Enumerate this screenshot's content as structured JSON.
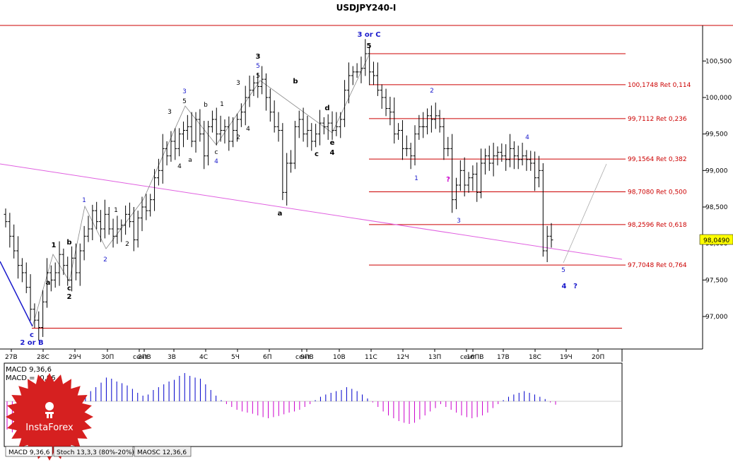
{
  "chart_data": {
    "type": "candlestick",
    "title": "USDJPY240-I",
    "symbol": "USDJPY",
    "timeframe": "H4",
    "y_ticks": [
      "100,500",
      "100,000",
      "99,500",
      "99,000",
      "98,500",
      "98,000",
      "97,500",
      "97,000"
    ],
    "y_tick_values": [
      100.5,
      100.0,
      99.5,
      99.0,
      98.5,
      98.0,
      97.5,
      97.0
    ],
    "ylim": [
      96.6,
      101.0
    ],
    "current_price": "98,0490",
    "current_price_value": 98.049,
    "x_ticks": [
      "27B",
      "28C",
      "29Ч",
      "30П",
      "сент",
      "2ПВ",
      "3B",
      "4C",
      "5Ч",
      "6П",
      "сент",
      "9ПВ",
      "10B",
      "11C",
      "12Ч",
      "13П",
      "сент",
      "16ПВ",
      "17B",
      "18C",
      "19Ч",
      "20П"
    ],
    "fib_levels": [
      {
        "price": 100.6,
        "label": ""
      },
      {
        "price": 100.1748,
        "label": "100,1748 Ret 0,114"
      },
      {
        "price": 99.7112,
        "label": "99,7112 Ret 0,236"
      },
      {
        "price": 99.1564,
        "label": "99,1564 Ret 0,382"
      },
      {
        "price": 98.708,
        "label": "98,7080 Ret 0,500"
      },
      {
        "price": 98.2596,
        "label": "98,2596 Ret 0,618"
      },
      {
        "price": 97.7048,
        "label": "97,7048 Ret 0,764"
      },
      {
        "price": 96.84,
        "label": ""
      }
    ],
    "closes": [
      98.3,
      98.1,
      97.9,
      97.7,
      97.6,
      97.4,
      97.1,
      96.95,
      96.85,
      97.2,
      97.6,
      97.5,
      97.6,
      97.85,
      97.7,
      97.5,
      97.8,
      97.6,
      97.9,
      98.1,
      98.2,
      98.45,
      98.3,
      98.2,
      98.4,
      98.2,
      98.1,
      98.2,
      98.25,
      98.4,
      98.3,
      98.05,
      98.35,
      98.5,
      98.45,
      98.6,
      98.9,
      99.0,
      99.3,
      99.2,
      99.4,
      99.3,
      99.5,
      99.55,
      99.6,
      99.4,
      99.7,
      99.5,
      99.2,
      99.6,
      99.7,
      99.5,
      99.55,
      99.6,
      99.4,
      99.55,
      99.7,
      99.8,
      100.0,
      100.1,
      100.2,
      100.15,
      100.25,
      100.0,
      99.8,
      99.6,
      99.55,
      98.7,
      99.1,
      99.1,
      99.6,
      99.7,
      99.5,
      99.55,
      99.4,
      99.5,
      99.65,
      99.6,
      99.65,
      99.55,
      99.6,
      99.7,
      100.1,
      100.3,
      100.35,
      100.35,
      100.4,
      100.6,
      100.35,
      100.3,
      100.1,
      100.0,
      99.85,
      99.8,
      99.5,
      99.55,
      99.3,
      99.3,
      99.2,
      99.5,
      99.6,
      99.6,
      99.75,
      99.7,
      99.75,
      99.6,
      99.3,
      99.3,
      98.6,
      98.8,
      99.0,
      98.8,
      98.9,
      98.95,
      98.7,
      99.1,
      99.2,
      99.1,
      99.2,
      99.25,
      99.2,
      99.15,
      99.3,
      99.2,
      99.15,
      99.2,
      99.15,
      99.1,
      98.9,
      99.0,
      97.9,
      98.1,
      98.049
    ],
    "macd": {
      "label": "MACD 9,36,6",
      "value_label": "MACD = -0,06",
      "values": [
        -0.5,
        -0.55,
        -0.6,
        -0.62,
        -0.6,
        -0.55,
        -0.5,
        -0.45,
        -0.4,
        -0.33,
        -0.25,
        -0.18,
        -0.1,
        -0.03,
        0.03,
        0.1,
        0.18,
        0.25,
        0.33,
        0.42,
        0.4,
        0.35,
        0.32,
        0.28,
        0.22,
        0.15,
        0.1,
        0.12,
        0.2,
        0.25,
        0.3,
        0.35,
        0.38,
        0.45,
        0.5,
        0.45,
        0.42,
        0.4,
        0.3,
        0.2,
        0.1,
        0.02,
        -0.05,
        -0.1,
        -0.15,
        -0.18,
        -0.2,
        -0.22,
        -0.25,
        -0.28,
        -0.3,
        -0.28,
        -0.26,
        -0.23,
        -0.2,
        -0.18,
        -0.15,
        -0.1,
        -0.05,
        0.02,
        0.08,
        0.12,
        0.15,
        0.18,
        0.2,
        0.25,
        0.22,
        0.18,
        0.12,
        0.05,
        -0.02,
        -0.1,
        -0.18,
        -0.25,
        -0.3,
        -0.35,
        -0.38,
        -0.4,
        -0.38,
        -0.32,
        -0.25,
        -0.18,
        -0.12,
        -0.05,
        -0.1,
        -0.15,
        -0.2,
        -0.25,
        -0.28,
        -0.3,
        -0.28,
        -0.25,
        -0.2,
        -0.12,
        -0.05,
        0.02,
        0.08,
        0.12,
        0.15,
        0.18,
        0.15,
        0.12,
        0.08,
        0.04,
        -0.02,
        -0.06
      ]
    },
    "tabs": [
      "MACD 9,36,6",
      "Stoch 13,3,3 (80%-20%)",
      "MAOSC 12,36,6"
    ],
    "colors": {
      "fib_line": "#cc0000",
      "fib_text": "#cc0000",
      "trendline": "#e060e0",
      "macd_positive": "#0000cc",
      "macd_negative": "#cc00cc",
      "wave_black": "#000000",
      "wave_blue": "#1a1acc",
      "wave_magenta": "#cc00cc",
      "price_box": "#ffff00",
      "logo": "#d62020"
    },
    "wave_labels": [
      {
        "text": "c",
        "color": "blue"
      },
      {
        "text": "2 or B",
        "color": "blue"
      },
      {
        "text": "1",
        "color": "black"
      },
      {
        "text": "a",
        "color": "black"
      },
      {
        "text": "b",
        "color": "black"
      },
      {
        "text": "c",
        "color": "black"
      },
      {
        "text": "2",
        "color": "black"
      },
      {
        "text": "1",
        "color": "blue"
      },
      {
        "text": "2",
        "color": "blue"
      },
      {
        "text": "1",
        "color": "black"
      },
      {
        "text": "2",
        "color": "black"
      },
      {
        "text": "3",
        "color": "black"
      },
      {
        "text": "3",
        "color": "blue"
      },
      {
        "text": "5",
        "color": "black"
      },
      {
        "text": "4",
        "color": "black"
      },
      {
        "text": "a",
        "color": "black"
      },
      {
        "text": "b",
        "color": "black"
      },
      {
        "text": "1",
        "color": "black"
      },
      {
        "text": "c",
        "color": "black"
      },
      {
        "text": "4",
        "color": "blue"
      },
      {
        "text": "2",
        "color": "black"
      },
      {
        "text": "3",
        "color": "black"
      },
      {
        "text": "4",
        "color": "black"
      },
      {
        "text": "3",
        "color": "black"
      },
      {
        "text": "5",
        "color": "blue"
      },
      {
        "text": "5",
        "color": "black"
      },
      {
        "text": "a",
        "color": "black"
      },
      {
        "text": "b",
        "color": "black"
      },
      {
        "text": "c",
        "color": "black"
      },
      {
        "text": "d",
        "color": "black"
      },
      {
        "text": "e",
        "color": "black"
      },
      {
        "text": "4",
        "color": "black"
      },
      {
        "text": "3 or C",
        "color": "blue"
      },
      {
        "text": "5",
        "color": "black"
      },
      {
        "text": "1",
        "color": "blue"
      },
      {
        "text": "2",
        "color": "blue"
      },
      {
        "text": "?",
        "color": "magenta"
      },
      {
        "text": "3",
        "color": "blue"
      },
      {
        "text": "4",
        "color": "blue"
      },
      {
        "text": "5",
        "color": "blue"
      },
      {
        "text": "4",
        "color": "blue"
      },
      {
        "text": "?",
        "color": "blue"
      }
    ]
  },
  "logo": {
    "brand": "InstaForex"
  }
}
